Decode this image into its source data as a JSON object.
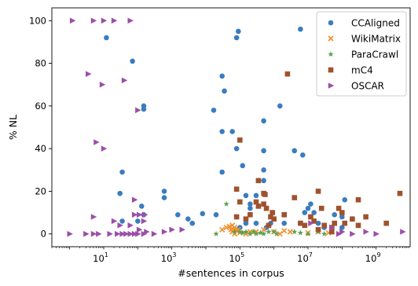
{
  "chart_data": {
    "type": "scatter",
    "xlabel": "#sentences in corpus",
    "ylabel": "% NL",
    "xscale": "log",
    "xlim": [
      0.3,
      10000000000
    ],
    "ylim": [
      -6,
      106
    ],
    "grid": false,
    "legend_position": "top-right",
    "x_ticks": [
      {
        "base": "10",
        "exp": "1",
        "value": 10
      },
      {
        "base": "10",
        "exp": "3",
        "value": 1000
      },
      {
        "base": "10",
        "exp": "5",
        "value": 100000
      },
      {
        "base": "10",
        "exp": "7",
        "value": 10000000
      },
      {
        "base": "10",
        "exp": "9",
        "value": 1000000000
      }
    ],
    "y_ticks": [
      {
        "label": "0",
        "value": 0
      },
      {
        "label": "20",
        "value": 20
      },
      {
        "label": "40",
        "value": 40
      },
      {
        "label": "60",
        "value": 60
      },
      {
        "label": "80",
        "value": 80
      },
      {
        "label": "100",
        "value": 100
      }
    ],
    "series": [
      {
        "name": "CCAligned",
        "marker": "circle",
        "color": "#3a7dbf",
        "points": [
          [
            12,
            92
          ],
          [
            70,
            81
          ],
          [
            150,
            60
          ],
          [
            150,
            58.5
          ],
          [
            35,
            29
          ],
          [
            30,
            19
          ],
          [
            600,
            20
          ],
          [
            600,
            17
          ],
          [
            130,
            13
          ],
          [
            35,
            6
          ],
          [
            150,
            9
          ],
          [
            100,
            6
          ],
          [
            1500,
            9
          ],
          [
            3000,
            7
          ],
          [
            4000,
            5
          ],
          [
            8000,
            9.5
          ],
          [
            20000,
            9
          ],
          [
            17000,
            58
          ],
          [
            30000,
            74
          ],
          [
            35000,
            67
          ],
          [
            30000,
            48
          ],
          [
            60000,
            48
          ],
          [
            30000,
            29
          ],
          [
            80000,
            92
          ],
          [
            90000,
            95
          ],
          [
            80000,
            40
          ],
          [
            120000,
            32
          ],
          [
            150000,
            18
          ],
          [
            200000,
            12
          ],
          [
            300000,
            18
          ],
          [
            200000,
            14
          ],
          [
            500000,
            53
          ],
          [
            500000,
            39
          ],
          [
            500000,
            30
          ],
          [
            500000,
            25
          ],
          [
            800000,
            5
          ],
          [
            300000,
            5
          ],
          [
            1500000,
            60
          ],
          [
            2000000,
            5
          ],
          [
            4000000,
            39
          ],
          [
            6000000,
            96
          ],
          [
            7000000,
            37
          ],
          [
            8000000,
            10
          ],
          [
            10000000,
            12
          ],
          [
            12000000,
            14
          ],
          [
            15000000,
            10
          ],
          [
            20000000,
            5
          ],
          [
            30000000,
            3
          ],
          [
            60000000,
            9
          ],
          [
            100000000,
            8
          ],
          [
            100000000,
            3
          ],
          [
            120000000,
            16
          ],
          [
            100000,
            3
          ],
          [
            150000,
            5
          ],
          [
            600000,
            3
          ]
        ]
      },
      {
        "name": "WikiMatrix",
        "marker": "x",
        "color": "#f28e2b",
        "points": [
          [
            30000,
            2
          ],
          [
            40000,
            3
          ],
          [
            50000,
            3.5
          ],
          [
            55000,
            2
          ],
          [
            60000,
            4
          ],
          [
            60000,
            1
          ],
          [
            70000,
            3
          ],
          [
            70000,
            0
          ],
          [
            80000,
            1.5
          ],
          [
            90000,
            2
          ],
          [
            100000,
            0.5
          ],
          [
            150000,
            0
          ],
          [
            200000,
            1
          ],
          [
            300000,
            1
          ],
          [
            500000,
            2
          ],
          [
            1000000,
            1
          ],
          [
            2000000,
            1.5
          ],
          [
            3000000,
            1
          ],
          [
            1500000,
            0
          ],
          [
            10000000,
            0.5
          ],
          [
            20000000,
            1
          ],
          [
            40000000,
            0.5
          ]
        ]
      },
      {
        "name": "ParaCrawl",
        "marker": "star",
        "color": "#59a14f",
        "points": [
          [
            40000,
            14
          ],
          [
            20000,
            0
          ],
          [
            70000,
            1
          ],
          [
            100000,
            1
          ],
          [
            120000,
            0.5
          ],
          [
            150000,
            1
          ],
          [
            200000,
            0
          ],
          [
            250000,
            1
          ],
          [
            300000,
            0
          ],
          [
            400000,
            0.5
          ],
          [
            500000,
            0
          ],
          [
            700000,
            1
          ],
          [
            1000000,
            1
          ],
          [
            1200000,
            0
          ],
          [
            4000000,
            1
          ],
          [
            6000000,
            0.5
          ],
          [
            10000000,
            0
          ],
          [
            20000000,
            1
          ],
          [
            30000000,
            0
          ]
        ]
      },
      {
        "name": "mC4",
        "marker": "square",
        "color": "#a0522d",
        "points": [
          [
            2500000,
            75
          ],
          [
            100000,
            44
          ],
          [
            80000,
            21
          ],
          [
            350000,
            25
          ],
          [
            500000,
            19
          ],
          [
            550000,
            18.5
          ],
          [
            100000,
            15
          ],
          [
            200000,
            9
          ],
          [
            300000,
            15
          ],
          [
            350000,
            13
          ],
          [
            500000,
            14
          ],
          [
            600000,
            12
          ],
          [
            150000,
            7
          ],
          [
            800000,
            8
          ],
          [
            900000,
            10
          ],
          [
            1000000,
            7
          ],
          [
            2000000,
            9
          ],
          [
            4000000,
            17
          ],
          [
            6000000,
            5
          ],
          [
            8000000,
            4
          ],
          [
            12000000,
            8
          ],
          [
            15000000,
            6
          ],
          [
            20000000,
            20
          ],
          [
            25000000,
            12
          ],
          [
            30000000,
            4
          ],
          [
            50000000,
            3
          ],
          [
            60000000,
            5
          ],
          [
            80000000,
            12
          ],
          [
            100000000,
            10
          ],
          [
            120000000,
            5
          ],
          [
            200000000,
            7
          ],
          [
            300000000,
            16
          ],
          [
            500000000,
            8
          ],
          [
            300000000,
            4
          ],
          [
            2000000000,
            5
          ],
          [
            5000000000,
            19
          ],
          [
            80000,
            8
          ],
          [
            700000,
            4
          ],
          [
            20000000,
            2
          ],
          [
            50000000,
            1
          ]
        ]
      },
      {
        "name": "OSCAR",
        "marker": "triangle-right",
        "color": "#9b4fa8",
        "points": [
          [
            1.2,
            100
          ],
          [
            5,
            100
          ],
          [
            10,
            100
          ],
          [
            20,
            100
          ],
          [
            60,
            100
          ],
          [
            3.5,
            75
          ],
          [
            9,
            70
          ],
          [
            40,
            72
          ],
          [
            100,
            58
          ],
          [
            6,
            43
          ],
          [
            10,
            40
          ],
          [
            80,
            16
          ],
          [
            80,
            9
          ],
          [
            110,
            9
          ],
          [
            160,
            9
          ],
          [
            150,
            6
          ],
          [
            5,
            8
          ],
          [
            20,
            6
          ],
          [
            30,
            4
          ],
          [
            60,
            4
          ],
          [
            110,
            2
          ],
          [
            180,
            1
          ],
          [
            1,
            0
          ],
          [
            3,
            0
          ],
          [
            5,
            0
          ],
          [
            7,
            0
          ],
          [
            15,
            0
          ],
          [
            25,
            0
          ],
          [
            35,
            0
          ],
          [
            45,
            0
          ],
          [
            60,
            0
          ],
          [
            80,
            0
          ],
          [
            1000,
            2
          ],
          [
            2000,
            2
          ],
          [
            600,
            1
          ],
          [
            100,
            0
          ],
          [
            150,
            0
          ],
          [
            300,
            0
          ],
          [
            12000000,
            5
          ],
          [
            50000000,
            3
          ],
          [
            80000000,
            0
          ],
          [
            100000000,
            1
          ],
          [
            200000000,
            0
          ],
          [
            500000000,
            1
          ],
          [
            1000000000,
            0
          ],
          [
            6000000000,
            1
          ]
        ]
      }
    ]
  }
}
